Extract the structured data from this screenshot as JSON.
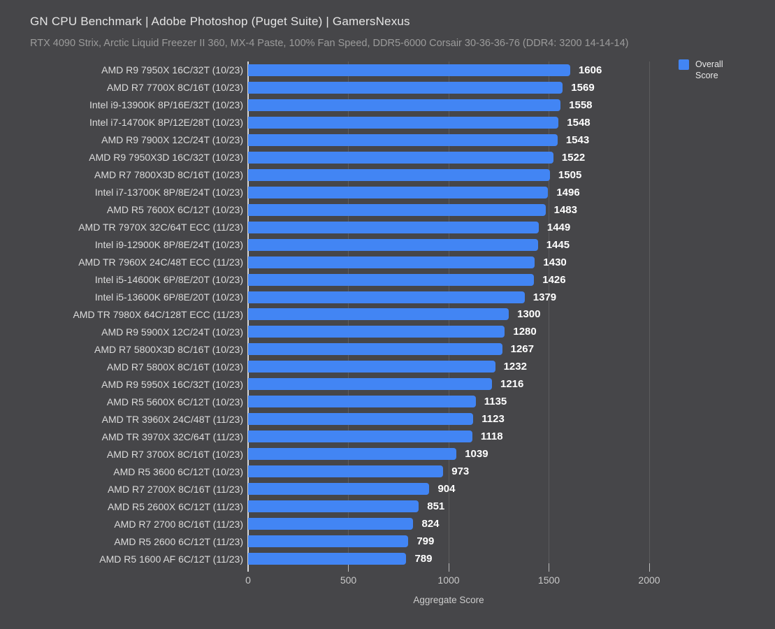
{
  "title": "GN CPU Benchmark | Adobe Photoshop (Puget Suite) | GamersNexus",
  "subtitle": "RTX 4090 Strix, Arctic Liquid Freezer II 360, MX-4 Paste, 100% Fan Speed, DDR5-6000 Corsair 30-36-36-76 (DDR4: 3200 14-14-14)",
  "legend": {
    "label": "Overall Score",
    "color": "#4285f4",
    "position": "top-right"
  },
  "colors": {
    "background": "#464649",
    "bar": "#4285f4",
    "gridline": "#5c5c5e",
    "zero_axis": "#d6d6d6",
    "title_text": "#e5e5e5",
    "subtitle_text": "#9b9b9b",
    "category_text": "#dcdcdc",
    "value_text": "#ffffff",
    "tick_text": "#c9c9c9"
  },
  "chart_data": {
    "type": "bar",
    "orientation": "horizontal",
    "title": "GN CPU Benchmark | Adobe Photoshop (Puget Suite) | GamersNexus",
    "subtitle": "RTX 4090 Strix, Arctic Liquid Freezer II 360, MX-4 Paste, 100% Fan Speed, DDR5-6000 Corsair 30-36-36-76 (DDR4: 3200 14-14-14)",
    "xlabel": "Aggregate Score",
    "ylabel": "",
    "series_name": "Overall Score",
    "xticks": [
      0,
      500,
      1000,
      1500,
      2000
    ],
    "xlim": [
      0,
      2625
    ],
    "grid": true,
    "legend_position": "top-right",
    "categories": [
      "AMD R9 7950X 16C/32T (10/23)",
      "AMD R7 7700X 8C/16T (10/23)",
      "Intel i9-13900K 8P/16E/32T (10/23)",
      "Intel i7-14700K 8P/12E/28T (10/23)",
      "AMD R9 7900X 12C/24T (10/23)",
      "AMD R9 7950X3D 16C/32T (10/23)",
      "AMD R7 7800X3D 8C/16T (10/23)",
      "Intel i7-13700K 8P/8E/24T (10/23)",
      "AMD R5 7600X 6C/12T (10/23)",
      "AMD TR 7970X 32C/64T ECC (11/23)",
      "Intel i9-12900K 8P/8E/24T (10/23)",
      "AMD TR 7960X 24C/48T ECC (11/23)",
      "Intel i5-14600K 6P/8E/20T (10/23)",
      "Intel i5-13600K 6P/8E/20T (10/23)",
      "AMD TR 7980X 64C/128T ECC (11/23)",
      "AMD R9 5900X 12C/24T (10/23)",
      "AMD R7 5800X3D 8C/16T (10/23)",
      "AMD R7 5800X 8C/16T (10/23)",
      "AMD R9 5950X 16C/32T (10/23)",
      "AMD R5 5600X 6C/12T (10/23)",
      "AMD TR 3960X 24C/48T (11/23)",
      "AMD TR 3970X 32C/64T (11/23)",
      "AMD R7 3700X 8C/16T (10/23)",
      "AMD R5 3600 6C/12T (10/23)",
      "AMD R7 2700X 8C/16T (11/23)",
      "AMD R5 2600X 6C/12T (11/23)",
      "AMD R7 2700 8C/16T (11/23)",
      "AMD R5 2600 6C/12T (11/23)",
      "AMD R5 1600 AF 6C/12T (11/23)"
    ],
    "values": [
      1606,
      1569,
      1558,
      1548,
      1543,
      1522,
      1505,
      1496,
      1483,
      1449,
      1445,
      1430,
      1426,
      1379,
      1300,
      1280,
      1267,
      1232,
      1216,
      1135,
      1123,
      1118,
      1039,
      973,
      904,
      851,
      824,
      799,
      789
    ]
  }
}
